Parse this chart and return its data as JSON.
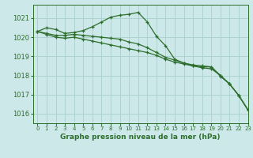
{
  "title": "Graphe pression niveau de la mer (hPa)",
  "bg_color": "#cce8e8",
  "grid_color": "#aacfcf",
  "line_color": "#2d6e2d",
  "ylim": [
    1015.5,
    1021.7
  ],
  "xlim": [
    -0.5,
    23
  ],
  "yticks": [
    1016,
    1017,
    1018,
    1019,
    1020,
    1021
  ],
  "xticks": [
    0,
    1,
    2,
    3,
    4,
    5,
    6,
    7,
    8,
    9,
    10,
    11,
    12,
    13,
    14,
    15,
    16,
    17,
    18,
    19,
    20,
    21,
    22,
    23
  ],
  "series": [
    [
      1020.3,
      1020.5,
      1020.4,
      1020.2,
      1020.25,
      1020.35,
      1020.55,
      1020.8,
      1021.05,
      1021.15,
      1021.2,
      1021.3,
      1020.8,
      1020.05,
      1019.55,
      1018.85,
      1018.65,
      1018.5,
      1018.45,
      1018.45,
      1017.95,
      1017.55,
      1016.95,
      1016.2
    ],
    [
      1020.3,
      1020.2,
      1020.1,
      1020.1,
      1020.15,
      1020.1,
      1020.05,
      1020.0,
      1019.95,
      1019.9,
      1019.75,
      1019.65,
      1019.45,
      1019.2,
      1018.95,
      1018.8,
      1018.65,
      1018.55,
      1018.5,
      1018.45,
      1018.0,
      1017.55,
      1016.95,
      1016.2
    ],
    [
      1020.3,
      1020.15,
      1020.0,
      1019.95,
      1020.0,
      1019.9,
      1019.8,
      1019.7,
      1019.6,
      1019.5,
      1019.4,
      1019.3,
      1019.2,
      1019.05,
      1018.85,
      1018.7,
      1018.6,
      1018.5,
      1018.4,
      1018.35,
      1018.0,
      1017.55,
      1016.95,
      1016.2
    ]
  ]
}
